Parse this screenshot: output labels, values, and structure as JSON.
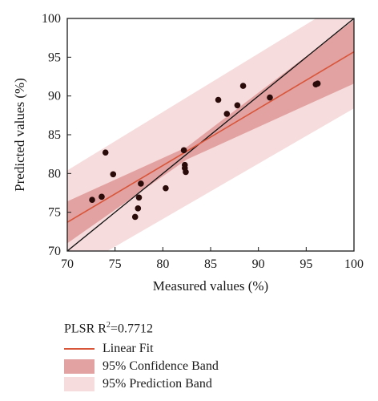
{
  "chart_data": {
    "type": "scatter",
    "xlabel": "Measured values (%)",
    "ylabel": "Predicted values (%)",
    "xlim": [
      70,
      100
    ],
    "ylim": [
      70,
      100
    ],
    "xticks": [
      70,
      75,
      80,
      85,
      90,
      95,
      100
    ],
    "yticks": [
      70,
      75,
      80,
      85,
      90,
      95,
      100
    ],
    "grid": false,
    "points": [
      {
        "x": 72.6,
        "y": 76.6
      },
      {
        "x": 73.6,
        "y": 77.0
      },
      {
        "x": 74.0,
        "y": 82.7
      },
      {
        "x": 74.8,
        "y": 79.9
      },
      {
        "x": 77.1,
        "y": 74.4
      },
      {
        "x": 77.4,
        "y": 75.5
      },
      {
        "x": 77.5,
        "y": 76.9
      },
      {
        "x": 77.7,
        "y": 78.7
      },
      {
        "x": 80.3,
        "y": 78.1
      },
      {
        "x": 82.2,
        "y": 83.0
      },
      {
        "x": 82.3,
        "y": 81.1
      },
      {
        "x": 82.3,
        "y": 80.7
      },
      {
        "x": 82.4,
        "y": 80.2
      },
      {
        "x": 85.8,
        "y": 89.5
      },
      {
        "x": 86.7,
        "y": 87.7
      },
      {
        "x": 87.8,
        "y": 88.8
      },
      {
        "x": 88.4,
        "y": 91.3
      },
      {
        "x": 91.2,
        "y": 89.8
      },
      {
        "x": 96.0,
        "y": 91.5
      },
      {
        "x": 96.2,
        "y": 91.6
      }
    ],
    "linear_fit": {
      "x": [
        70,
        100
      ],
      "y": [
        73.7,
        95.7
      ]
    },
    "identity_line": {
      "x": [
        70,
        100
      ],
      "y": [
        70,
        100
      ]
    },
    "confidence_band": {
      "x": [
        70,
        82.5,
        100
      ],
      "lower": [
        71.0,
        81.8,
        91.6
      ],
      "upper": [
        76.4,
        83.4,
        99.8
      ]
    },
    "prediction_band": {
      "x": [
        70,
        100
      ],
      "lower": [
        67.0,
        88.4
      ],
      "upper": [
        80.4,
        103.0
      ]
    },
    "legend": {
      "title_main": "PLSR R",
      "title_sup": "2",
      "title_value": "=0.7712",
      "items": [
        {
          "label": "Linear Fit",
          "kind": "line",
          "color": "#d8553a"
        },
        {
          "label": "95% Confidence Band",
          "kind": "fill",
          "color": "#e3a2a2"
        },
        {
          "label": "95% Prediction Band",
          "kind": "fill",
          "color": "#f6dcdc"
        }
      ]
    },
    "colors": {
      "points": "#2b0a0a",
      "fit": "#d8553a",
      "identity": "#111111",
      "confidence": "#e3a2a2",
      "prediction": "#f6dcdc"
    }
  }
}
